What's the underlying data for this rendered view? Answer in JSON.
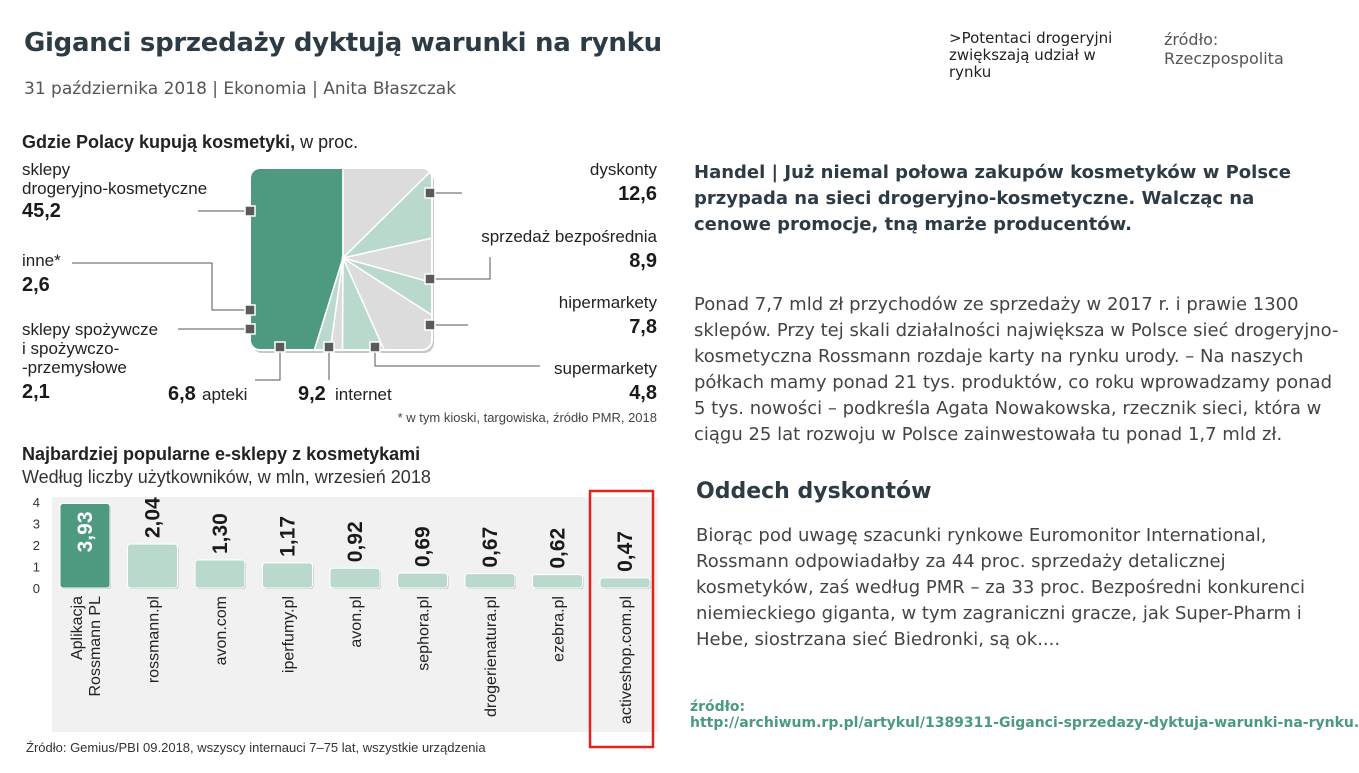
{
  "article": {
    "title": "Giganci sprzedaży dyktują warunki na rynku",
    "meta": "31 października 2018 | Ekonomia | Anita Błaszczak",
    "note": ">Potentaci drogeryjni zwiększają udział w rynku",
    "source_label": "źródło:",
    "source_value": "Rzeczpospolita",
    "lead": "Handel | Już niemal połowa zakupów kosmetyków w Polsce przypada na sieci drogeryjno-kosmetyczne. Walcząc na cenowe promocje, tną marże producentów.",
    "paragraph1": "Ponad 7,7 mld zł przychodów ze sprzedaży w 2017 r. i prawie 1300 sklepów. Przy tej skali działalności największa w Polsce sieć drogeryjno-kosmetyczna Rossmann rozdaje karty na rynku urody. – Na naszych półkach mamy ponad 21 tys. produktów, co roku wprowadzamy ponad 5 tys. nowości – podkreśla Agata Nowakowska, rzecznik sieci, która w ciągu 25 lat rozwoju w Polsce zainwestowała tu ponad 1,7 mld zł.",
    "subheading": "Oddech dyskontów",
    "paragraph2": "Biorąc pod uwagę szacunki rynkowe Euromonitor International, Rossmann odpowiadałby za 44 proc. sprzedaży detalicznej kosmetyków, zaś według PMR – za 33 proc. Bezpośredni konkurenci niemieckiego giganta, w tym zagraniczni gracze, jak Super-Pharm i Hebe, siostrzana sieć Biedronki, są ok....",
    "bottom_source_label": "źródło:",
    "bottom_source_url": "http://archiwum.rp.pl/artykul/1389311-Giganci-sprzedazy-dyktuja-warunki-na-rynku.html"
  },
  "colors": {
    "highlight": "#4e9a80",
    "light_green": "#b9d9cd",
    "light_gray": "#dcdcdc",
    "frame_red": "#e0241b",
    "text_dark": "#2d3b45"
  },
  "chart_data": [
    {
      "type": "pie",
      "title": "Gdzie Polacy kupują kosmetyki,",
      "title_suffix": "w proc.",
      "footnote": "* w tym kioski, targowiska, źródło PMR, 2018",
      "slices": [
        {
          "label_lines": [
            "sklepy",
            "drogeryjno-kosmetyczne"
          ],
          "value_text": "45,2",
          "value": 45.2,
          "color": "#4e9a80"
        },
        {
          "label_lines": [
            "dyskonty"
          ],
          "value_text": "12,6",
          "value": 12.6,
          "color": "#dcdcdc"
        },
        {
          "label_lines": [
            "sprzedaż bezpośrednia"
          ],
          "value_text": "8,9",
          "value": 8.9,
          "color": "#b9d9cd"
        },
        {
          "label_lines": [
            "hipermarkety"
          ],
          "value_text": "7,8",
          "value": 7.8,
          "color": "#dcdcdc"
        },
        {
          "label_lines": [
            "supermarkety"
          ],
          "value_text": "4,8",
          "value": 4.8,
          "color": "#b9d9cd"
        },
        {
          "label_lines": [
            "internet"
          ],
          "value_text": "9,2",
          "value": 9.2,
          "color": "#dcdcdc"
        },
        {
          "label_lines": [
            "apteki"
          ],
          "value_text": "6,8",
          "value": 6.8,
          "color": "#b9d9cd"
        },
        {
          "label_lines": [
            "sklepy spożywcze",
            "i spożywczo-",
            "-przemysłowe"
          ],
          "value_text": "2,1",
          "value": 2.1,
          "color": "#dcdcdc"
        },
        {
          "label_lines": [
            "inne*"
          ],
          "value_text": "2,6",
          "value": 2.6,
          "color": "#b9d9cd"
        }
      ]
    },
    {
      "type": "bar",
      "title": "Najbardziej popularne e-sklepy z kosmetykami",
      "subtitle": "Według liczby użytkowników, w mln, wrzesień 2018",
      "source": "Źródło: Gemius/PBI 09.2018, wszyscy internauci 7–75 lat, wszystkie urządzenia",
      "ylim": [
        0,
        4
      ],
      "yticks": [
        "4",
        "3",
        "2",
        "1",
        "0"
      ],
      "categories": [
        [
          "Aplikacja",
          "Rossmann PL"
        ],
        [
          "rossmann.pl"
        ],
        [
          "avon.com"
        ],
        [
          "iperfumy.pl"
        ],
        [
          "avon.pl"
        ],
        [
          "sephora.pl"
        ],
        [
          "drogerienatura.pl"
        ],
        [
          "ezebra.pl"
        ],
        [
          "activeshop.com.pl"
        ]
      ],
      "values": [
        3.93,
        2.04,
        1.3,
        1.17,
        0.92,
        0.69,
        0.67,
        0.62,
        0.47
      ],
      "value_labels": [
        "3,93",
        "2,04",
        "1,30",
        "1,17",
        "0,92",
        "0,69",
        "0,67",
        "0,62",
        "0,47"
      ],
      "highlighted_index": 8
    }
  ]
}
